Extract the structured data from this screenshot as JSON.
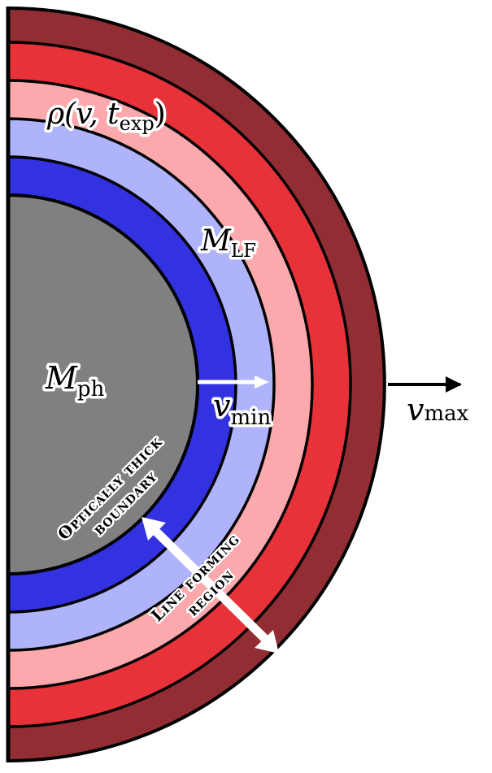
{
  "colors": {
    "outer_shell": "#922e33",
    "red_shell": "#e8323a",
    "pink_shell": "#fba9ad",
    "light_blue_shell": "#aeb3fb",
    "blue_shell": "#3232e0",
    "core": "#808080",
    "outline": "#000000",
    "arrow_white": "#ffffff"
  },
  "labels": {
    "rho": {
      "main": "ρ(v, t",
      "sub": "exp",
      "close": ")"
    },
    "m_lf": {
      "main": "M",
      "sub": "LF"
    },
    "m_ph": {
      "main": "M",
      "sub": "ph"
    },
    "v_min": {
      "main": "v",
      "sub": "min"
    },
    "v_max": {
      "main": "v",
      "sub": "max"
    },
    "optically_thick": {
      "line1": "Optically thick",
      "line2": "boundary"
    },
    "line_forming": {
      "line1": "Line forming",
      "line2": "region"
    }
  }
}
